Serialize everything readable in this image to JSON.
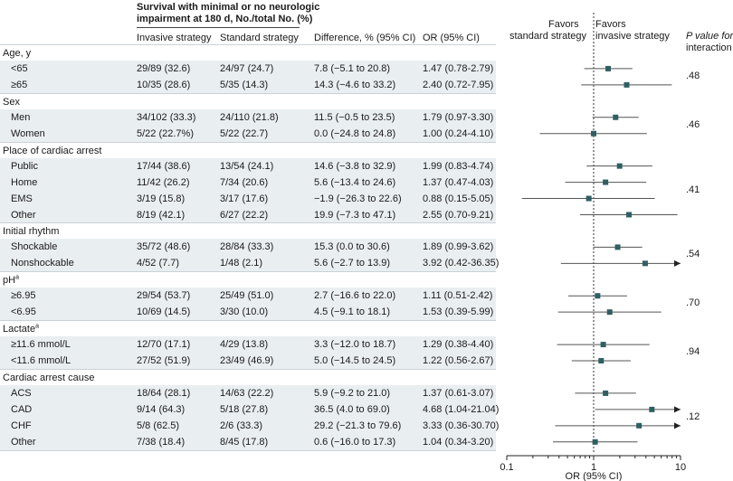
{
  "header": {
    "survival_title_line1": "Survival with minimal or no neurologic",
    "survival_title_line2": "impairment at 180 d, No./total No. (%)",
    "col_invasive": "Invasive strategy",
    "col_standard": "Standard strategy",
    "col_difference": "Difference, % (95% CI)",
    "col_or": "OR (95% CI)",
    "favors_standard_line1": "Favors",
    "favors_standard_line2": "standard strategy",
    "favors_invasive_line1": "Favors",
    "favors_invasive_line2": "invasive strategy",
    "pvalue_line1": "P value for",
    "pvalue_line2": "interaction"
  },
  "colors": {
    "marker": "#2e5f63",
    "ci_line": "#555555",
    "arrow": "#222222",
    "reference_line": "#333333",
    "shade": "#e9eef1"
  },
  "chart_data": {
    "type": "forest",
    "xlabel": "OR (95% CI)",
    "xscale": "log",
    "xlim": [
      0.1,
      10
    ],
    "xticks": [
      0.1,
      1,
      10
    ],
    "xtick_labels": [
      "0.1",
      "1",
      "10"
    ],
    "reference_value": 1,
    "groups": [
      {
        "label": "Age, y",
        "label_sup": "",
        "p_value": ".48",
        "rows": [
          {
            "label": "<65",
            "invasive": "29/89 (32.6)",
            "standard": "24/97 (24.7)",
            "difference": "7.8 (−5.1 to 20.8)",
            "or_text": "1.47 (0.78-2.79)",
            "or": 1.47,
            "lo": 0.78,
            "hi": 2.79
          },
          {
            "label": "≥65",
            "invasive": "10/35 (28.6)",
            "standard": "5/35 (14.3)",
            "difference": "14.3 (−4.6 to 33.2)",
            "or_text": "2.40 (0.72-7.95)",
            "or": 2.4,
            "lo": 0.72,
            "hi": 7.95
          }
        ]
      },
      {
        "label": "Sex",
        "label_sup": "",
        "p_value": ".46",
        "rows": [
          {
            "label": "Men",
            "invasive": "34/102 (33.3)",
            "standard": "24/110 (21.8)",
            "difference": "11.5 (−0.5 to 23.5)",
            "or_text": "1.79 (0.97-3.30)",
            "or": 1.79,
            "lo": 0.97,
            "hi": 3.3
          },
          {
            "label": "Women",
            "invasive": "5/22 (22.7%)",
            "standard": "5/22 (22.7)",
            "difference": "0.0 (−24.8 to 24.8)",
            "or_text": "1.00 (0.24-4.10)",
            "or": 1.0,
            "lo": 0.24,
            "hi": 4.1
          }
        ]
      },
      {
        "label": "Place of cardiac arrest",
        "label_sup": "",
        "p_value": ".41",
        "rows": [
          {
            "label": "Public",
            "invasive": "17/44 (38.6)",
            "standard": "13/54 (24.1)",
            "difference": "14.6 (−3.8 to 32.9)",
            "or_text": "1.99 (0.83-4.74)",
            "or": 1.99,
            "lo": 0.83,
            "hi": 4.74
          },
          {
            "label": "Home",
            "invasive": "11/42 (26.2)",
            "standard": "7/34 (20.6)",
            "difference": "5.6 (−13.4 to 24.6)",
            "or_text": "1.37 (0.47-4.03)",
            "or": 1.37,
            "lo": 0.47,
            "hi": 4.03
          },
          {
            "label": "EMS",
            "invasive": "3/19 (15.8)",
            "standard": "3/17 (17.6)",
            "difference": "−1.9 (−26.3 to 22.6)",
            "or_text": "0.88 (0.15-5.05)",
            "or": 0.88,
            "lo": 0.15,
            "hi": 5.05
          },
          {
            "label": "Other",
            "invasive": "8/19 (42.1)",
            "standard": "6/27 (22.2)",
            "difference": "19.9 (−7.3 to 47.1)",
            "or_text": "2.55 (0.70-9.21)",
            "or": 2.55,
            "lo": 0.7,
            "hi": 9.21
          }
        ]
      },
      {
        "label": "Initial rhythm",
        "label_sup": "",
        "p_value": ".54",
        "rows": [
          {
            "label": "Shockable",
            "invasive": "35/72 (48.6)",
            "standard": "28/84 (33.3)",
            "difference": "15.3 (0.0 to 30.6)",
            "or_text": "1.89 (0.99-3.62)",
            "or": 1.89,
            "lo": 0.99,
            "hi": 3.62
          },
          {
            "label": "Nonshockable",
            "invasive": "4/52 (7.7)",
            "standard": "1/48 (2.1)",
            "difference": "5.6 (−2.7 to 13.9)",
            "or_text": "3.92 (0.42-36.35)",
            "or": 3.92,
            "lo": 0.42,
            "hi": 36.35
          }
        ]
      },
      {
        "label": "pH",
        "label_sup": "a",
        "p_value": ".70",
        "rows": [
          {
            "label": "≥6.95",
            "invasive": "29/54 (53.7)",
            "standard": "25/49 (51.0)",
            "difference": "2.7 (−16.6 to 22.0)",
            "or_text": "1.11 (0.51-2.42)",
            "or": 1.11,
            "lo": 0.51,
            "hi": 2.42
          },
          {
            "label": "<6.95",
            "invasive": "10/69 (14.5)",
            "standard": "3/30 (10.0)",
            "difference": "4.5 (−9.1 to 18.1)",
            "or_text": "1.53 (0.39-5.99)",
            "or": 1.53,
            "lo": 0.39,
            "hi": 5.99
          }
        ]
      },
      {
        "label": "Lactate",
        "label_sup": "a",
        "p_value": ".94",
        "rows": [
          {
            "label": "≥11.6 mmol/L",
            "invasive": "12/70 (17.1)",
            "standard": "4/29 (13.8)",
            "difference": "3.3 (−12.0 to 18.7)",
            "or_text": "1.29 (0.38-4.40)",
            "or": 1.29,
            "lo": 0.38,
            "hi": 4.4
          },
          {
            "label": "<11.6 mmol/L",
            "invasive": "27/52 (51.9)",
            "standard": "23/49 (46.9)",
            "difference": "5.0 (−14.5 to 24.5)",
            "or_text": "1.22 (0.56-2.67)",
            "or": 1.22,
            "lo": 0.56,
            "hi": 2.67
          }
        ]
      },
      {
        "label": "Cardiac arrest cause",
        "label_sup": "",
        "p_value": ".12",
        "rows": [
          {
            "label": "ACS",
            "invasive": "18/64 (28.1)",
            "standard": "14/63 (22.2)",
            "difference": "5.9 (−9.2 to 21.0)",
            "or_text": "1.37 (0.61-3.07)",
            "or": 1.37,
            "lo": 0.61,
            "hi": 3.07
          },
          {
            "label": "CAD",
            "invasive": "9/14 (64.3)",
            "standard": "5/18 (27.8)",
            "difference": "36.5 (4.0 to 69.0)",
            "or_text": "4.68 (1.04-21.04)",
            "or": 4.68,
            "lo": 1.04,
            "hi": 21.04
          },
          {
            "label": "CHF",
            "invasive": "5/8 (62.5)",
            "standard": "2/6 (33.3)",
            "difference": "29.2 (−21.3 to 79.6)",
            "or_text": "3.33 (0.36-30.70)",
            "or": 3.33,
            "lo": 0.36,
            "hi": 30.7
          },
          {
            "label": "Other",
            "invasive": "7/38 (18.4)",
            "standard": "8/45 (17.8)",
            "difference": "0.6 (−16.0 to 17.3)",
            "or_text": "1.04 (0.34-3.20)",
            "or": 1.04,
            "lo": 0.34,
            "hi": 3.2
          }
        ]
      }
    ]
  }
}
